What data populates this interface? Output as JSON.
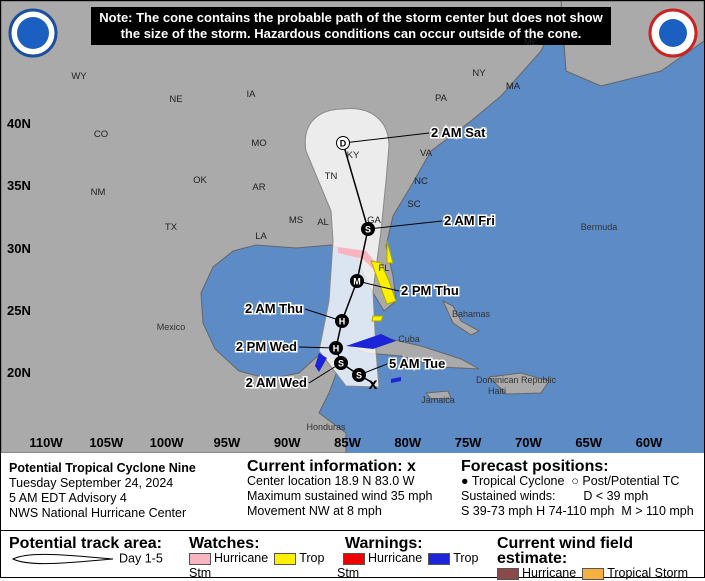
{
  "note": [
    "Note: The cone contains the probable path of the storm center but does not show",
    "the size of the storm. Hazardous conditions can occur outside of the cone."
  ],
  "map": {
    "latitude_labels": [
      "40N",
      "35N",
      "30N",
      "25N",
      "20N"
    ],
    "longitude_labels": [
      "110W",
      "105W",
      "100W",
      "95W",
      "90W",
      "85W",
      "80W",
      "75W",
      "70W",
      "65W",
      "60W"
    ],
    "region_labels": [
      "WY",
      "CO",
      "NM",
      "NE",
      "IA",
      "MO",
      "OK",
      "AR",
      "TX",
      "LA",
      "MS",
      "AL",
      "TN",
      "KY",
      "GA",
      "SC",
      "NC",
      "VA",
      "PA",
      "NY",
      "ME",
      "MA",
      "FL",
      "Mexico",
      "Bermuda",
      "Bahamas",
      "Cuba",
      "Jamaica",
      "Dominican Republic",
      "Haiti",
      "Honduras"
    ],
    "point_letters": [
      "D",
      "S",
      "M",
      "H",
      "H",
      "S",
      "S"
    ],
    "forecast_labels": [
      "2 AM Sat",
      "2 AM Fri",
      "2 PM Thu",
      "2 AM Thu",
      "2 PM Wed",
      "2 AM Wed",
      "5 AM Tue"
    ]
  },
  "storm": {
    "name": "Potential Tropical Cyclone Nine",
    "date": "Tuesday September 24, 2024",
    "advisory": "5 AM EDT Advisory 4",
    "source": "NWS National Hurricane Center"
  },
  "current": {
    "heading": "Current information:",
    "symbol": "x",
    "lines": [
      "Center location 18.9 N 83.0 W",
      "Maximum sustained wind 35 mph",
      "Movement NW at 8 mph"
    ]
  },
  "forecast": {
    "heading": "Forecast positions:",
    "tropical": "Tropical Cyclone",
    "post": "Post/Potential TC",
    "sustained": "Sustained winds:",
    "d": "D < 39 mph",
    "s": "S 39-73 mph",
    "h": "H 74-110 mph",
    "m": "M > 110 mph"
  },
  "legend": {
    "track_heading": "Potential track area:",
    "day": "Day 1-5",
    "watches": "Watches:",
    "warnings": "Warnings:",
    "wind": "Current wind field estimate:",
    "hurricane": "Hurricane",
    "trop_stm": "Trop Stm",
    "tropical_storm": "Tropical Storm"
  }
}
